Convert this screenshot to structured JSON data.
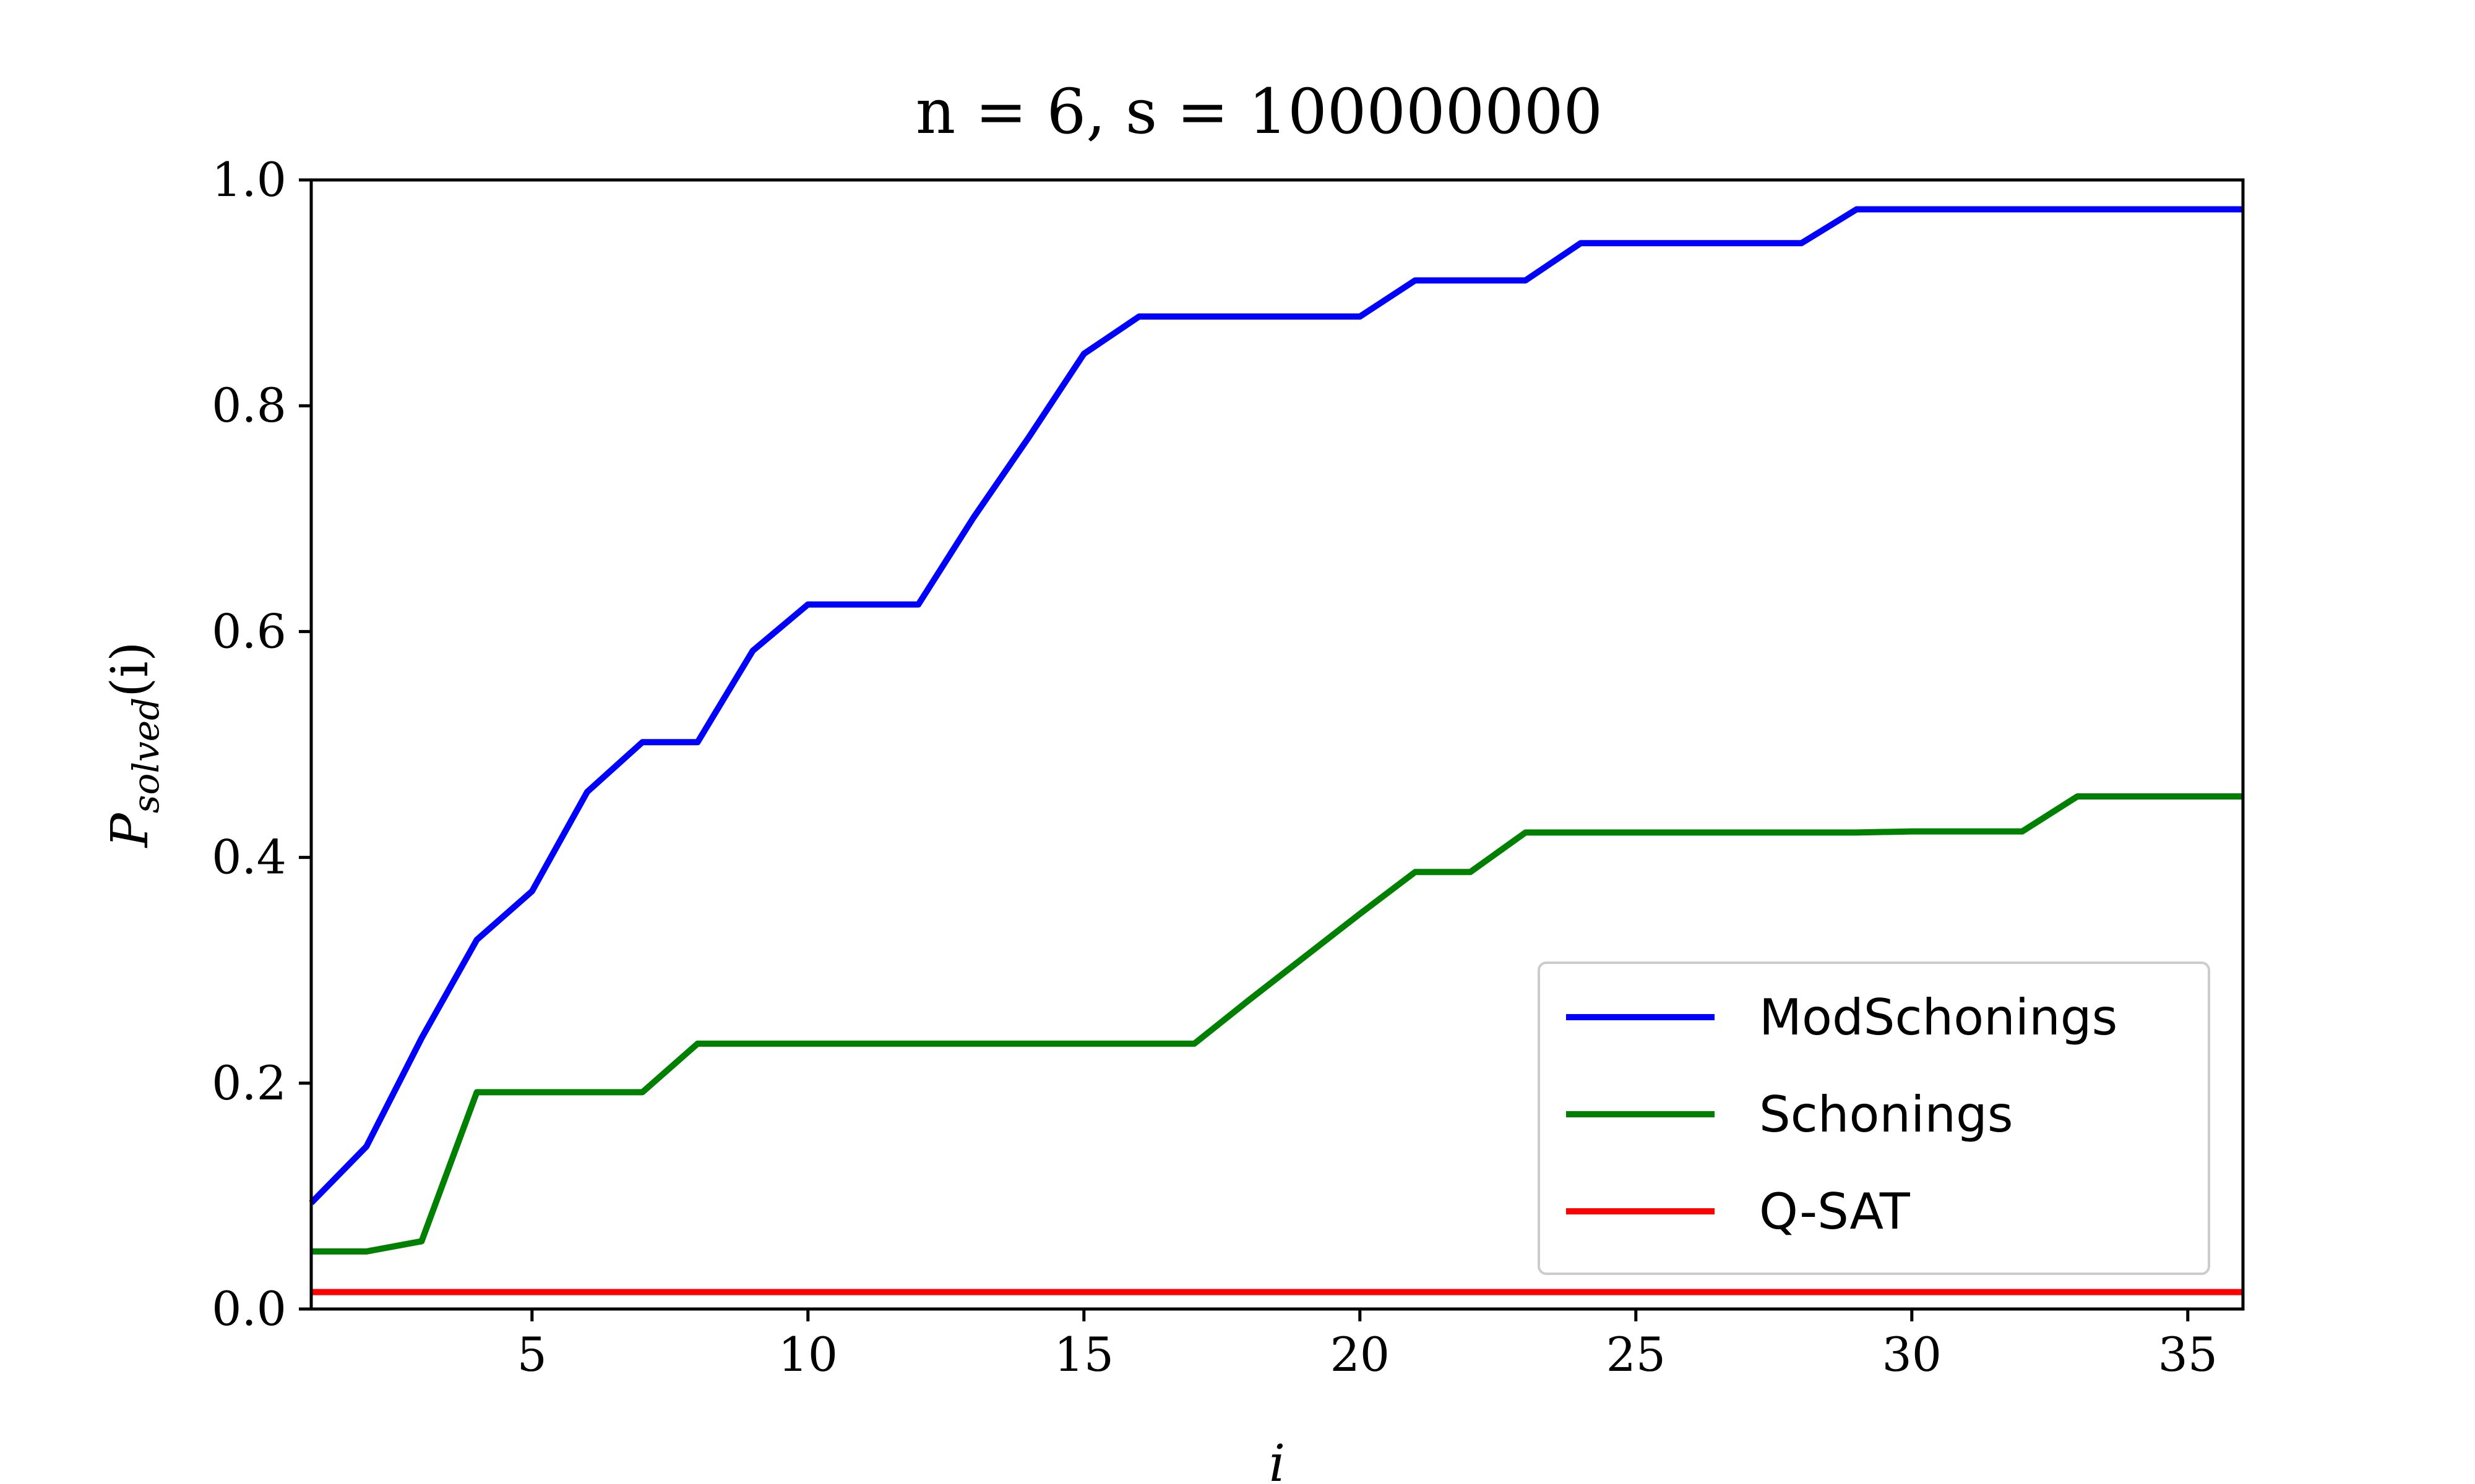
{
  "chart_data": {
    "type": "line",
    "title": "n = 6, s = 100000000",
    "xlabel": "i",
    "ylabel": "P",
    "ylabel_subscript": "solved",
    "ylabel_suffix": "(i)",
    "xlim": [
      1,
      36
    ],
    "ylim": [
      0,
      1
    ],
    "x_ticks": [
      5,
      10,
      15,
      20,
      25,
      30,
      35
    ],
    "y_ticks": [
      0.0,
      0.2,
      0.4,
      0.6,
      0.8,
      1.0
    ],
    "x_tick_labels": [
      "5",
      "10",
      "15",
      "20",
      "25",
      "30",
      "35"
    ],
    "y_tick_labels": [
      "0.0",
      "0.2",
      "0.4",
      "0.6",
      "0.8",
      "1.0"
    ],
    "grid": false,
    "legend_position": "lower-right",
    "x": [
      1,
      2,
      3,
      4,
      5,
      6,
      7,
      8,
      9,
      10,
      11,
      12,
      13,
      14,
      15,
      16,
      17,
      18,
      19,
      20,
      21,
      22,
      23,
      24,
      25,
      26,
      27,
      28,
      29,
      30,
      31,
      32,
      33,
      34,
      35,
      36
    ],
    "series": [
      {
        "name": "ModSchonings",
        "color": "#0000ff",
        "values": [
          0.094,
          0.144,
          0.24,
          0.327,
          0.37,
          0.458,
          0.502,
          0.502,
          0.583,
          0.624,
          0.624,
          0.624,
          0.701,
          0.772,
          0.846,
          0.879,
          0.879,
          0.879,
          0.879,
          0.879,
          0.911,
          0.911,
          0.911,
          0.944,
          0.944,
          0.944,
          0.944,
          0.944,
          0.974,
          0.974,
          0.974,
          0.974,
          0.974,
          0.974,
          0.974,
          0.974
        ]
      },
      {
        "name": "Schonings",
        "color": "#008000",
        "values": [
          0.051,
          0.051,
          0.06,
          0.192,
          0.192,
          0.192,
          0.192,
          0.235,
          0.235,
          0.235,
          0.235,
          0.235,
          0.235,
          0.235,
          0.235,
          0.235,
          0.235,
          0.274,
          0.312,
          0.35,
          0.387,
          0.387,
          0.422,
          0.422,
          0.422,
          0.422,
          0.422,
          0.422,
          0.422,
          0.423,
          0.423,
          0.423,
          0.454,
          0.454,
          0.454,
          0.454
        ]
      },
      {
        "name": "Q-SAT",
        "color": "#ff0000",
        "values": [
          0.015,
          0.015,
          0.015,
          0.015,
          0.015,
          0.015,
          0.015,
          0.015,
          0.015,
          0.015,
          0.015,
          0.015,
          0.015,
          0.015,
          0.015,
          0.015,
          0.015,
          0.015,
          0.015,
          0.015,
          0.015,
          0.015,
          0.015,
          0.015,
          0.015,
          0.015,
          0.015,
          0.015,
          0.015,
          0.015,
          0.015,
          0.015,
          0.015,
          0.015,
          0.015,
          0.015
        ]
      }
    ]
  }
}
